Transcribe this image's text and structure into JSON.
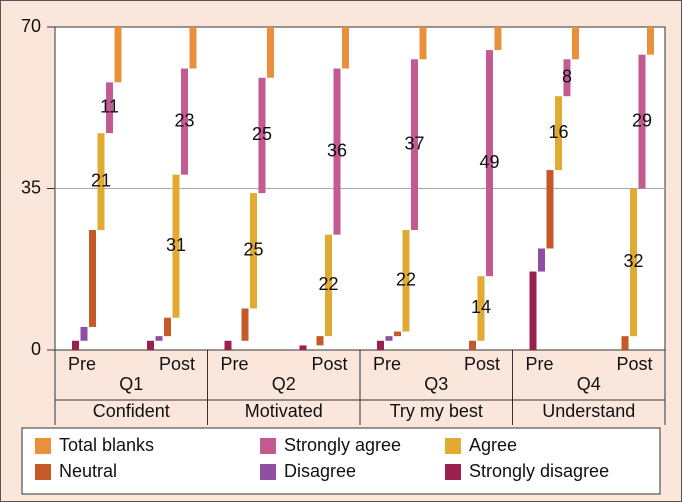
{
  "chart_data": {
    "type": "waterfall-stack",
    "categories": [
      "Pre",
      "Post",
      "Pre",
      "Post",
      "Pre",
      "Post",
      "Pre",
      "Post"
    ],
    "groups": [
      {
        "name": "Q1",
        "label": "Confident"
      },
      {
        "name": "Q2",
        "label": "Motivated"
      },
      {
        "name": "Q3",
        "label": "Try my best"
      },
      {
        "name": "Q4",
        "label": "Understand"
      }
    ],
    "ylim": [
      0,
      70
    ],
    "yticks": [
      0,
      35,
      70
    ],
    "grid": true,
    "series": [
      {
        "name": "Strongly disagree",
        "color": "#9b1f4f",
        "values": [
          2,
          2,
          2,
          1,
          2,
          0,
          17,
          0
        ]
      },
      {
        "name": "Disagree",
        "color": "#8e4fa2",
        "values": [
          3,
          1,
          0,
          0,
          1,
          0,
          5,
          0
        ]
      },
      {
        "name": "Neutral",
        "color": "#c55a28",
        "values": [
          21,
          4,
          7,
          2,
          1,
          2,
          17,
          3
        ]
      },
      {
        "name": "Agree",
        "color": "#e1ab33",
        "values": [
          21,
          31,
          25,
          22,
          22,
          14,
          16,
          32
        ],
        "show_labels": true
      },
      {
        "name": "Strongly agree",
        "color": "#c45a92",
        "values": [
          11,
          23,
          25,
          36,
          37,
          49,
          8,
          29
        ],
        "show_labels": true
      },
      {
        "name": "Total blanks",
        "color": "#e8913a",
        "values": [
          12,
          9,
          11,
          9,
          7,
          5,
          7,
          6
        ]
      }
    ]
  }
}
